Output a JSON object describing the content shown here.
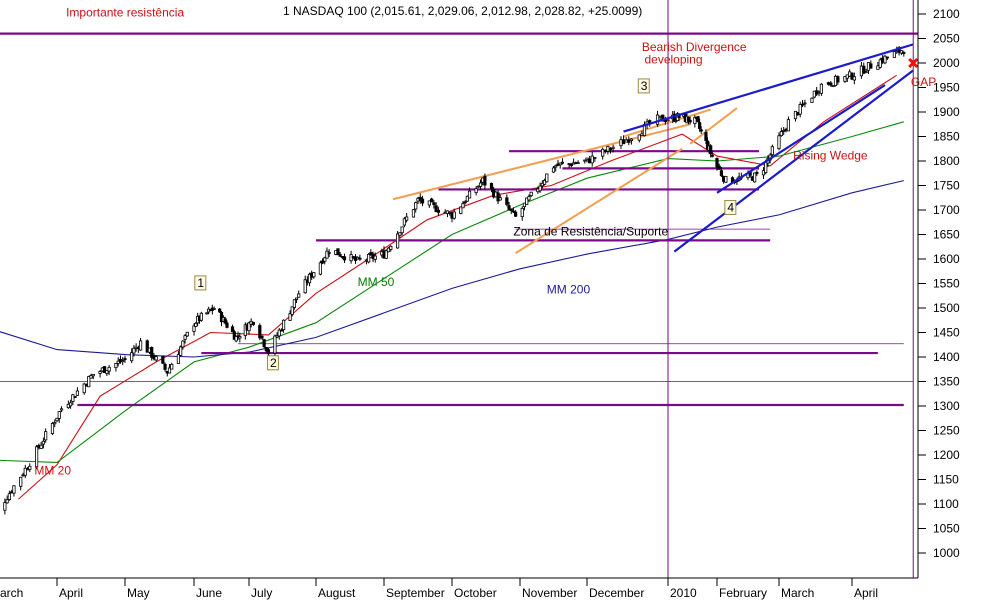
{
  "chart_data": {
    "type": "candlestick",
    "title": "1 NASDAQ 100 (2,015.61, 2,029.06, 2,012.98, 2,028.82, +25.0099)",
    "ylim": [
      960,
      2120
    ],
    "y_ticks": [
      1000,
      1050,
      1100,
      1150,
      1200,
      1250,
      1300,
      1350,
      1400,
      1450,
      1500,
      1550,
      1600,
      1650,
      1700,
      1750,
      1800,
      1850,
      1900,
      1950,
      2000,
      2050,
      2100
    ],
    "x_ticks": [
      "arch",
      "April",
      "May",
      "June",
      "July",
      "August",
      "September",
      "October",
      "November",
      "December",
      "2010",
      "February",
      "March",
      "April"
    ],
    "colors": {
      "price": "#000000",
      "ma20": "#cc1111",
      "ma50": "#0a8a0a",
      "ma200": "#1b1b9a",
      "level": "#7a0a8a",
      "channel": "#f0a050",
      "trend": "#1b1bcc",
      "marker": "#ee1111"
    },
    "price_path": [
      [
        "2009-03-02",
        1060
      ],
      [
        "2009-03-20",
        1185
      ],
      [
        "2009-04-03",
        1295
      ],
      [
        "2009-04-17",
        1365
      ],
      [
        "2009-05-01",
        1395
      ],
      [
        "2009-05-08",
        1430
      ],
      [
        "2009-05-20",
        1370
      ],
      [
        "2009-06-01",
        1470
      ],
      [
        "2009-06-12",
        1500
      ],
      [
        "2009-06-24",
        1440
      ],
      [
        "2009-07-03",
        1475
      ],
      [
        "2009-07-10",
        1410
      ],
      [
        "2009-07-24",
        1530
      ],
      [
        "2009-08-07",
        1620
      ],
      [
        "2009-08-20",
        1595
      ],
      [
        "2009-09-01",
        1610
      ],
      [
        "2009-09-16",
        1720
      ],
      [
        "2009-10-01",
        1690
      ],
      [
        "2009-10-15",
        1760
      ],
      [
        "2009-10-30",
        1685
      ],
      [
        "2009-11-16",
        1790
      ],
      [
        "2009-12-01",
        1800
      ],
      [
        "2009-12-15",
        1840
      ],
      [
        "2009-12-28",
        1885
      ],
      [
        "2010-01-08",
        1890
      ],
      [
        "2010-01-19",
        1880
      ],
      [
        "2010-02-05",
        1760
      ],
      [
        "2010-02-20",
        1770
      ],
      [
        "2010-03-05",
        1880
      ],
      [
        "2010-03-19",
        1955
      ],
      [
        "2010-04-01",
        1975
      ],
      [
        "2010-04-13",
        2005
      ],
      [
        "2010-04-23",
        2028.82
      ]
    ],
    "series": [
      {
        "name": "MM 20",
        "values": [
          [
            "2009-03-15",
            1110
          ],
          [
            "2009-04-01",
            1180
          ],
          [
            "2009-04-20",
            1320
          ],
          [
            "2009-05-15",
            1390
          ],
          [
            "2009-06-10",
            1450
          ],
          [
            "2009-07-10",
            1445
          ],
          [
            "2009-08-01",
            1530
          ],
          [
            "2009-08-25",
            1600
          ],
          [
            "2009-09-20",
            1680
          ],
          [
            "2009-10-20",
            1730
          ],
          [
            "2009-11-15",
            1750
          ],
          [
            "2009-12-10",
            1800
          ],
          [
            "2010-01-10",
            1855
          ],
          [
            "2010-02-01",
            1810
          ],
          [
            "2010-02-25",
            1790
          ],
          [
            "2010-03-20",
            1880
          ],
          [
            "2010-04-20",
            1975
          ]
        ]
      },
      {
        "name": "MM 50",
        "values": [
          [
            "2009-03-01",
            1190
          ],
          [
            "2009-04-01",
            1185
          ],
          [
            "2009-05-01",
            1290
          ],
          [
            "2009-06-01",
            1390
          ],
          [
            "2009-07-01",
            1420
          ],
          [
            "2009-08-01",
            1470
          ],
          [
            "2009-09-01",
            1560
          ],
          [
            "2009-10-01",
            1650
          ],
          [
            "2009-11-01",
            1710
          ],
          [
            "2009-12-01",
            1765
          ],
          [
            "2010-01-01",
            1805
          ],
          [
            "2010-02-01",
            1800
          ],
          [
            "2010-03-01",
            1810
          ],
          [
            "2010-04-01",
            1850
          ],
          [
            "2010-04-23",
            1880
          ]
        ]
      },
      {
        "name": "MM 200",
        "values": [
          [
            "2009-03-01",
            1460
          ],
          [
            "2009-04-01",
            1415
          ],
          [
            "2009-05-01",
            1405
          ],
          [
            "2009-06-01",
            1400
          ],
          [
            "2009-07-01",
            1410
          ],
          [
            "2009-08-01",
            1440
          ],
          [
            "2009-09-01",
            1490
          ],
          [
            "2009-10-01",
            1540
          ],
          [
            "2009-11-01",
            1580
          ],
          [
            "2009-12-01",
            1610
          ],
          [
            "2010-01-01",
            1640
          ],
          [
            "2010-02-01",
            1665
          ],
          [
            "2010-03-01",
            1690
          ],
          [
            "2010-04-01",
            1735
          ],
          [
            "2010-04-23",
            1760
          ]
        ]
      }
    ],
    "horizontal_levels": [
      {
        "y": 2060,
        "from": "2009-03-01",
        "to": "2010-04-30"
      },
      {
        "y": 1820,
        "from": "2009-10-27",
        "to": "2010-02-20"
      },
      {
        "y": 1785,
        "from": "2009-11-20",
        "to": "2010-02-20"
      },
      {
        "y": 1742,
        "from": "2009-09-25",
        "to": "2010-02-20"
      },
      {
        "y": 1638,
        "from": "2009-08-01",
        "to": "2010-02-25"
      },
      {
        "y": 1408,
        "from": "2009-06-05",
        "to": "2010-04-12"
      },
      {
        "y": 1302,
        "from": "2009-04-10",
        "to": "2010-04-23"
      }
    ],
    "thin_levels": [
      {
        "y": 1427,
        "from": "2009-06-25",
        "to": "2010-04-23"
      },
      {
        "y": 1350,
        "from": "2009-03-01",
        "to": "2010-04-27"
      },
      {
        "y": 1661,
        "from": "2009-10-30",
        "to": "2010-02-25"
      }
    ],
    "channel_lines": [
      {
        "from": [
          "2009-09-05",
          1722
        ],
        "to": [
          "2010-01-15",
          1875
        ]
      },
      {
        "from": [
          "2009-10-30",
          1612
        ],
        "to": [
          "2010-01-10",
          1825
        ]
      },
      {
        "from": [
          "2009-12-15",
          1850
        ],
        "to": [
          "2010-01-28",
          1905
        ]
      },
      {
        "from": [
          "2010-01-15",
          1835
        ],
        "to": [
          "2010-02-10",
          1908
        ]
      }
    ],
    "trend_lines": [
      {
        "from": [
          "2009-12-15",
          1860
        ],
        "to": [
          "2010-04-27",
          2038
        ]
      },
      {
        "from": [
          "2010-01-05",
          1615
        ],
        "to": [
          "2010-04-27",
          1985
        ]
      },
      {
        "from": [
          "2010-02-01",
          1735
        ],
        "to": [
          "2010-04-15",
          1955
        ]
      }
    ],
    "annotations": [
      {
        "text": "Importante resistência",
        "x": "2009-04-05",
        "y": 2095,
        "color": "red"
      },
      {
        "text": "Bearish Divergence",
        "x": "2009-12-22",
        "y": 2024,
        "color": "red"
      },
      {
        "text": "developing",
        "x": "2009-12-23",
        "y": 1999,
        "color": "red"
      },
      {
        "text": "GAP",
        "x": "2010-04-26",
        "y": 1953,
        "color": "red"
      },
      {
        "text": "Rising Wedge",
        "x": "2010-03-07",
        "y": 1803,
        "color": "red"
      },
      {
        "text": "Zona de Resistência/Suporte",
        "x": "2009-10-29",
        "y": 1648,
        "color": "black"
      },
      {
        "text": "MM 50",
        "x": "2009-08-20",
        "y": 1545,
        "color": "green"
      },
      {
        "text": "MM 200",
        "x": "2009-11-13",
        "y": 1530,
        "color": "blue"
      },
      {
        "text": "MM 20",
        "x": "2009-03-22",
        "y": 1160,
        "color": "red"
      }
    ],
    "wave_labels": [
      {
        "text": "2",
        "x": "2009-07-10",
        "y": 1380
      },
      {
        "text": "3",
        "x": "2009-12-21",
        "y": 1945
      },
      {
        "text": "4",
        "x": "2010-02-05",
        "y": 1697
      },
      {
        "text": "1",
        "x": "2009-06-02",
        "y": 1543
      }
    ],
    "vertical_lines": [
      "2010-01-01",
      "2010-04-27"
    ],
    "gap_marker": {
      "x": "2010-04-27",
      "y": 2000
    }
  }
}
